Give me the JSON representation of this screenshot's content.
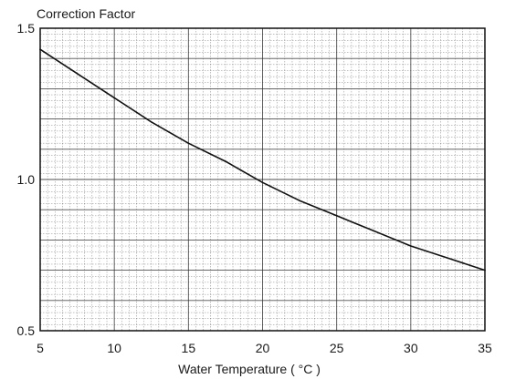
{
  "chart_data": {
    "type": "line",
    "title": "",
    "ylabel": "Correction Factor",
    "xlabel": "Water Temperature ( °C )",
    "xlim": [
      5,
      35
    ],
    "ylim": [
      0.5,
      1.5
    ],
    "x_ticks": [
      5,
      10,
      15,
      20,
      25,
      30,
      35
    ],
    "x_tick_labels": [
      "5",
      "10",
      "15",
      "20",
      "25",
      "30",
      "35"
    ],
    "y_ticks": [
      0.5,
      1.0,
      1.5
    ],
    "y_tick_labels": [
      "0.5",
      "1.0",
      "1.5"
    ],
    "grid": true,
    "series": [
      {
        "x": [
          5,
          7.5,
          10,
          12.5,
          15,
          17.5,
          20,
          22.5,
          25,
          27.5,
          30,
          32.5,
          35
        ],
        "values": [
          1.43,
          1.35,
          1.27,
          1.19,
          1.12,
          1.06,
          0.99,
          0.93,
          0.88,
          0.83,
          0.78,
          0.74,
          0.7
        ]
      }
    ],
    "colors": {
      "line": "#111111",
      "grid": "#333333",
      "frame": "#111111"
    }
  }
}
